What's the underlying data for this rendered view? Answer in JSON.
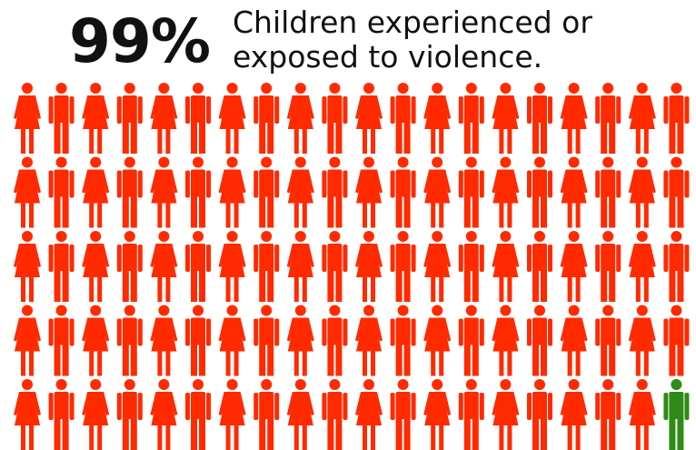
{
  "headline": {
    "percent": "99%",
    "caption_line1": "Children experienced or",
    "caption_line2": "exposed to violence."
  },
  "chart_data": {
    "type": "pictogram",
    "total": 100,
    "rows": 5,
    "columns": 20,
    "series": [
      {
        "name": "",
        "value": 99,
        "color": "#ff2a00"
      },
      {
        "name": "",
        "value": 1,
        "color": "#2e8b16"
      }
    ],
    "icon_pattern": [
      "female-figure-icon",
      "male-figure-icon"
    ]
  }
}
